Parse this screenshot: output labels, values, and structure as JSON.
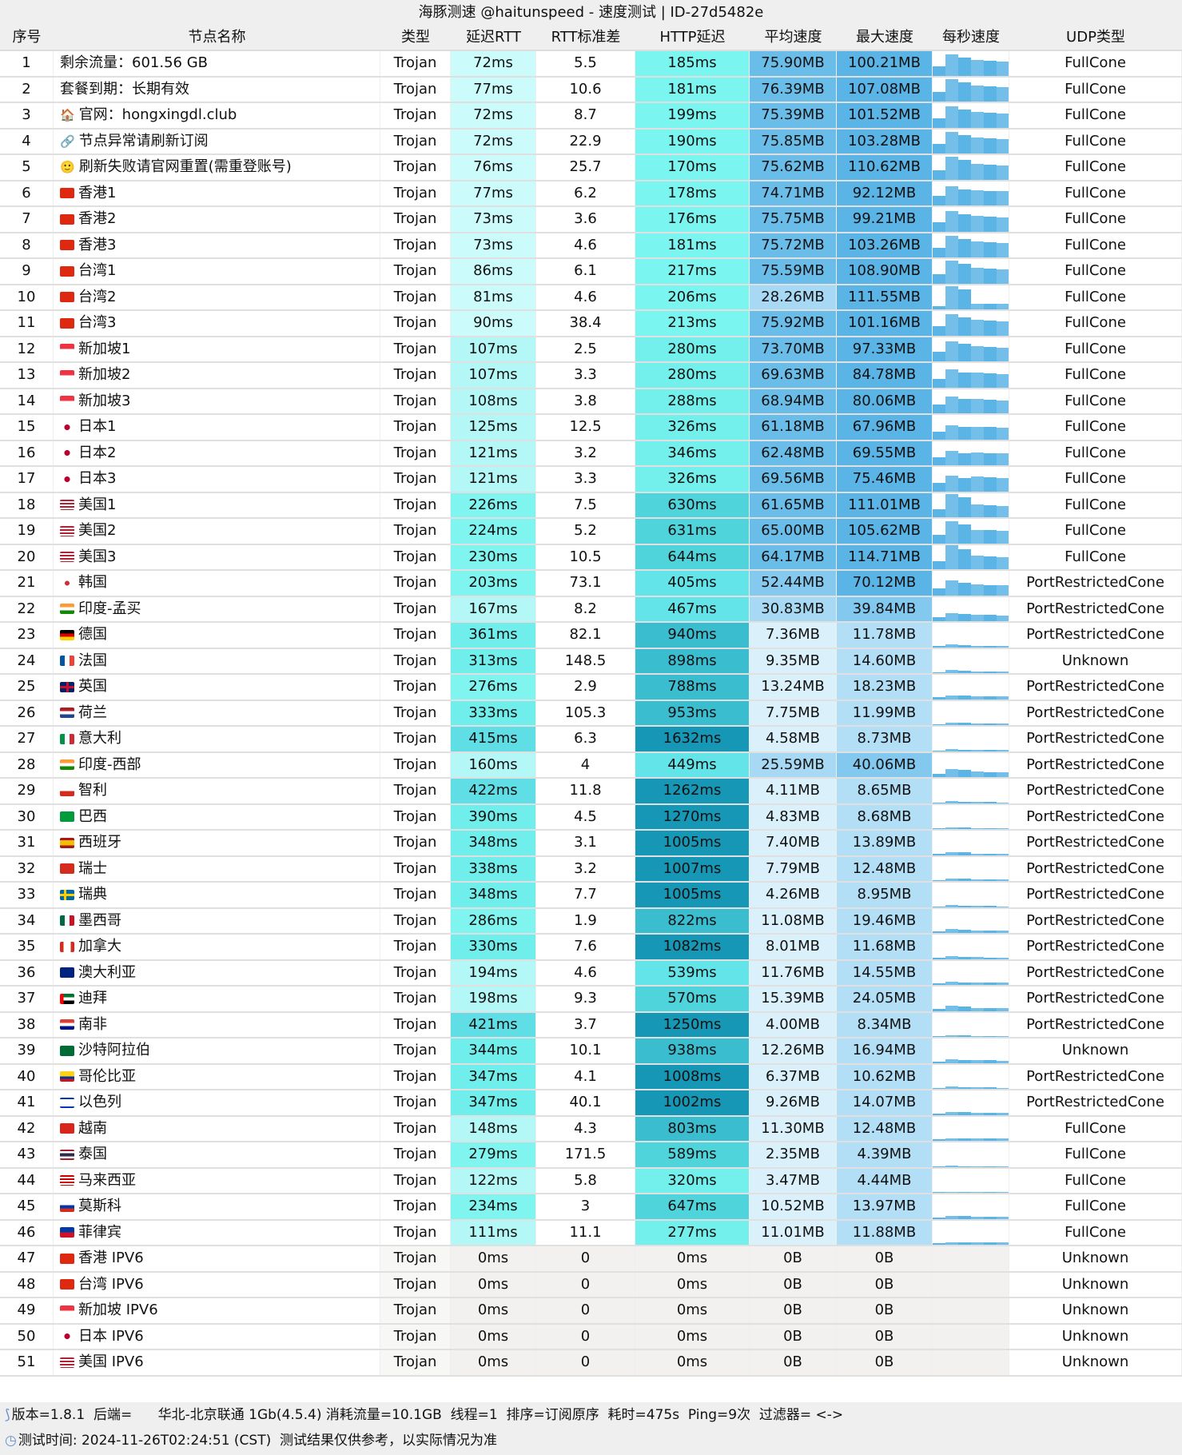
{
  "title": "海豚测速 @haitunspeed - 速度测试 | ID-27d5482e",
  "headers": [
    "序号",
    "节点名称",
    "类型",
    "延迟RTT",
    "RTT标准差",
    "HTTP延迟",
    "平均速度",
    "最大速度",
    "每秒速度",
    "UDP类型"
  ],
  "colors": {
    "header_bg": "#efefef",
    "rtt_light": "#ccfbfb",
    "http_dark": "#1597b5",
    "avg_high": "#6bbde9",
    "max_high": "#5ab4e6",
    "empty": "#f2f1ef"
  },
  "rows": [
    [
      "1",
      "",
      "剩余流量：601.56 GB",
      "Trojan",
      "72ms",
      "5.5",
      "185ms",
      "75.90MB",
      "100.21MB",
      "FullCone"
    ],
    [
      "2",
      "",
      "套餐到期：长期有效",
      "Trojan",
      "77ms",
      "10.6",
      "181ms",
      "76.39MB",
      "107.08MB",
      "FullCone"
    ],
    [
      "3",
      "house",
      "官网：hongxingdl.club",
      "Trojan",
      "72ms",
      "8.7",
      "199ms",
      "75.39MB",
      "101.52MB",
      "FullCone"
    ],
    [
      "4",
      "link",
      "节点异常请刷新订阅",
      "Trojan",
      "72ms",
      "22.9",
      "190ms",
      "75.85MB",
      "103.28MB",
      "FullCone"
    ],
    [
      "5",
      "smile",
      "刷新失败请官网重置(需重登账号)",
      "Trojan",
      "76ms",
      "25.7",
      "170ms",
      "75.62MB",
      "110.62MB",
      "FullCone"
    ],
    [
      "6",
      "hk",
      "香港1",
      "Trojan",
      "77ms",
      "6.2",
      "178ms",
      "74.71MB",
      "92.12MB",
      "FullCone"
    ],
    [
      "7",
      "hk",
      "香港2",
      "Trojan",
      "73ms",
      "3.6",
      "176ms",
      "75.75MB",
      "99.21MB",
      "FullCone"
    ],
    [
      "8",
      "hk",
      "香港3",
      "Trojan",
      "73ms",
      "4.6",
      "181ms",
      "75.72MB",
      "103.26MB",
      "FullCone"
    ],
    [
      "9",
      "cn",
      "台湾1",
      "Trojan",
      "86ms",
      "6.1",
      "217ms",
      "75.59MB",
      "108.90MB",
      "FullCone"
    ],
    [
      "10",
      "cn",
      "台湾2",
      "Trojan",
      "81ms",
      "4.6",
      "206ms",
      "28.26MB",
      "111.55MB",
      "FullCone"
    ],
    [
      "11",
      "cn",
      "台湾3",
      "Trojan",
      "90ms",
      "38.4",
      "213ms",
      "75.92MB",
      "101.16MB",
      "FullCone"
    ],
    [
      "12",
      "sg",
      "新加坡1",
      "Trojan",
      "107ms",
      "2.5",
      "280ms",
      "73.70MB",
      "97.33MB",
      "FullCone"
    ],
    [
      "13",
      "sg",
      "新加坡2",
      "Trojan",
      "107ms",
      "3.3",
      "280ms",
      "69.63MB",
      "84.78MB",
      "FullCone"
    ],
    [
      "14",
      "sg",
      "新加坡3",
      "Trojan",
      "108ms",
      "3.8",
      "288ms",
      "68.94MB",
      "80.06MB",
      "FullCone"
    ],
    [
      "15",
      "jp",
      "日本1",
      "Trojan",
      "125ms",
      "12.5",
      "326ms",
      "61.18MB",
      "67.96MB",
      "FullCone"
    ],
    [
      "16",
      "jp",
      "日本2",
      "Trojan",
      "121ms",
      "3.2",
      "346ms",
      "62.48MB",
      "69.55MB",
      "FullCone"
    ],
    [
      "17",
      "jp",
      "日本3",
      "Trojan",
      "121ms",
      "3.3",
      "326ms",
      "69.56MB",
      "75.46MB",
      "FullCone"
    ],
    [
      "18",
      "us",
      "美国1",
      "Trojan",
      "226ms",
      "7.5",
      "630ms",
      "61.65MB",
      "111.01MB",
      "FullCone"
    ],
    [
      "19",
      "us",
      "美国2",
      "Trojan",
      "224ms",
      "5.2",
      "631ms",
      "65.00MB",
      "105.62MB",
      "FullCone"
    ],
    [
      "20",
      "us",
      "美国3",
      "Trojan",
      "230ms",
      "10.5",
      "644ms",
      "64.17MB",
      "114.71MB",
      "FullCone"
    ],
    [
      "21",
      "kr",
      "韩国",
      "Trojan",
      "203ms",
      "73.1",
      "405ms",
      "52.44MB",
      "70.12MB",
      "PortRestrictedCone"
    ],
    [
      "22",
      "in",
      "印度-孟买",
      "Trojan",
      "167ms",
      "8.2",
      "467ms",
      "30.83MB",
      "39.84MB",
      "PortRestrictedCone"
    ],
    [
      "23",
      "de",
      "德国",
      "Trojan",
      "361ms",
      "82.1",
      "940ms",
      "7.36MB",
      "11.78MB",
      "PortRestrictedCone"
    ],
    [
      "24",
      "fr",
      "法国",
      "Trojan",
      "313ms",
      "148.5",
      "898ms",
      "9.35MB",
      "14.60MB",
      "Unknown"
    ],
    [
      "25",
      "gb",
      "英国",
      "Trojan",
      "276ms",
      "2.9",
      "788ms",
      "13.24MB",
      "18.23MB",
      "PortRestrictedCone"
    ],
    [
      "26",
      "nl",
      "荷兰",
      "Trojan",
      "333ms",
      "105.3",
      "953ms",
      "7.75MB",
      "11.99MB",
      "PortRestrictedCone"
    ],
    [
      "27",
      "it",
      "意大利",
      "Trojan",
      "415ms",
      "6.3",
      "1632ms",
      "4.58MB",
      "8.73MB",
      "PortRestrictedCone"
    ],
    [
      "28",
      "in",
      "印度-西部",
      "Trojan",
      "160ms",
      "4",
      "449ms",
      "25.59MB",
      "40.06MB",
      "PortRestrictedCone"
    ],
    [
      "29",
      "cl",
      "智利",
      "Trojan",
      "422ms",
      "11.8",
      "1262ms",
      "4.11MB",
      "8.65MB",
      "PortRestrictedCone"
    ],
    [
      "30",
      "br",
      "巴西",
      "Trojan",
      "390ms",
      "4.5",
      "1270ms",
      "4.83MB",
      "8.68MB",
      "PortRestrictedCone"
    ],
    [
      "31",
      "es",
      "西班牙",
      "Trojan",
      "348ms",
      "3.1",
      "1005ms",
      "7.40MB",
      "13.89MB",
      "PortRestrictedCone"
    ],
    [
      "32",
      "ch",
      "瑞士",
      "Trojan",
      "338ms",
      "3.2",
      "1007ms",
      "7.79MB",
      "12.48MB",
      "PortRestrictedCone"
    ],
    [
      "33",
      "se",
      "瑞典",
      "Trojan",
      "348ms",
      "7.7",
      "1005ms",
      "4.26MB",
      "8.95MB",
      "PortRestrictedCone"
    ],
    [
      "34",
      "mx",
      "墨西哥",
      "Trojan",
      "286ms",
      "1.9",
      "822ms",
      "11.08MB",
      "19.46MB",
      "PortRestrictedCone"
    ],
    [
      "35",
      "ca",
      "加拿大",
      "Trojan",
      "330ms",
      "7.6",
      "1082ms",
      "8.01MB",
      "11.68MB",
      "PortRestrictedCone"
    ],
    [
      "36",
      "au",
      "澳大利亚",
      "Trojan",
      "194ms",
      "4.6",
      "539ms",
      "11.76MB",
      "14.55MB",
      "PortRestrictedCone"
    ],
    [
      "37",
      "ae",
      "迪拜",
      "Trojan",
      "198ms",
      "9.3",
      "570ms",
      "15.39MB",
      "24.05MB",
      "PortRestrictedCone"
    ],
    [
      "38",
      "za",
      "南非",
      "Trojan",
      "421ms",
      "3.7",
      "1250ms",
      "4.00MB",
      "8.34MB",
      "PortRestrictedCone"
    ],
    [
      "39",
      "sa",
      "沙特阿拉伯",
      "Trojan",
      "344ms",
      "10.1",
      "938ms",
      "12.26MB",
      "16.94MB",
      "Unknown"
    ],
    [
      "40",
      "co",
      "哥伦比亚",
      "Trojan",
      "347ms",
      "4.1",
      "1008ms",
      "6.37MB",
      "10.62MB",
      "PortRestrictedCone"
    ],
    [
      "41",
      "il",
      "以色列",
      "Trojan",
      "347ms",
      "40.1",
      "1002ms",
      "9.26MB",
      "14.07MB",
      "PortRestrictedCone"
    ],
    [
      "42",
      "vn",
      "越南",
      "Trojan",
      "148ms",
      "4.3",
      "803ms",
      "11.30MB",
      "12.48MB",
      "FullCone"
    ],
    [
      "43",
      "th",
      "泰国",
      "Trojan",
      "279ms",
      "171.5",
      "589ms",
      "2.35MB",
      "4.39MB",
      "FullCone"
    ],
    [
      "44",
      "my",
      "马来西亚",
      "Trojan",
      "122ms",
      "5.8",
      "320ms",
      "3.47MB",
      "4.44MB",
      "FullCone"
    ],
    [
      "45",
      "ru",
      "莫斯科",
      "Trojan",
      "234ms",
      "3",
      "647ms",
      "10.52MB",
      "13.97MB",
      "FullCone"
    ],
    [
      "46",
      "ph",
      "菲律宾",
      "Trojan",
      "111ms",
      "11.1",
      "277ms",
      "11.01MB",
      "11.88MB",
      "FullCone"
    ],
    [
      "47",
      "hk",
      "香港 IPV6",
      "Trojan",
      "0ms",
      "0",
      "0ms",
      "0B",
      "0B",
      "Unknown"
    ],
    [
      "48",
      "cn",
      "台湾 IPV6",
      "Trojan",
      "0ms",
      "0",
      "0ms",
      "0B",
      "0B",
      "Unknown"
    ],
    [
      "49",
      "sg",
      "新加坡 IPV6",
      "Trojan",
      "0ms",
      "0",
      "0ms",
      "0B",
      "0B",
      "Unknown"
    ],
    [
      "50",
      "jp",
      "日本 IPV6",
      "Trojan",
      "0ms",
      "0",
      "0ms",
      "0B",
      "0B",
      "Unknown"
    ],
    [
      "51",
      "us",
      "美国 IPV6",
      "Trojan",
      "0ms",
      "0",
      "0ms",
      "0B",
      "0B",
      "Unknown"
    ]
  ],
  "footer": {
    "line1": "版本=1.8.1  后端=      华北-北京联通 1Gb(4.5.4) 消耗流量=10.1GB  线程=1  排序=订阅原序  耗时=475s  Ping=9次  过滤器= <->",
    "line2": "测试时间: 2024-11-26T02:24:51 (CST)  测试结果仅供参考，以实际情况为准"
  }
}
